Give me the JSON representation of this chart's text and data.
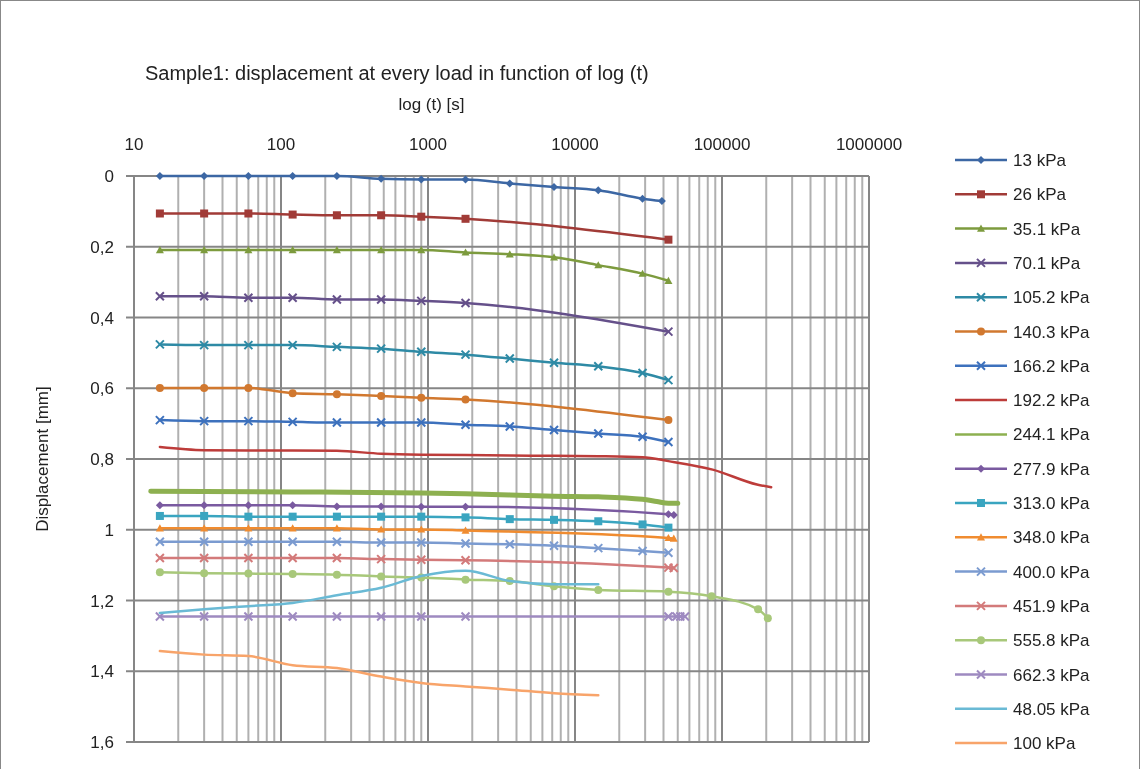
{
  "chart_data": {
    "type": "line",
    "title": "Sample1: displacement at every load in function of log (t)",
    "xlabel": "log (t) [s]",
    "ylabel": "Displacement [mm]",
    "log": "x",
    "grid": true,
    "legend": "right",
    "xlim": [
      10,
      1000000
    ],
    "ylim": [
      1.6,
      0
    ],
    "xticks": [
      10,
      {
        "value": 20,
        "label": null
      },
      {
        "value": 30,
        "label": null
      },
      {
        "value": 40,
        "label": null
      },
      {
        "value": 50,
        "label": null
      },
      {
        "value": 60,
        "label": null
      },
      {
        "value": 70,
        "label": null
      },
      {
        "value": 80,
        "label": null
      },
      {
        "value": 90,
        "label": null
      },
      100,
      {
        "value": 200,
        "label": null
      },
      {
        "value": 300,
        "label": null
      },
      {
        "value": 400,
        "label": null
      },
      {
        "value": 500,
        "label": null
      },
      {
        "value": 600,
        "label": null
      },
      {
        "value": 700,
        "label": null
      },
      {
        "value": 800,
        "label": null
      },
      {
        "value": 900,
        "label": null
      },
      1000,
      {
        "value": 2000,
        "label": null
      },
      {
        "value": 3000,
        "label": null
      },
      {
        "value": 4000,
        "label": null
      },
      {
        "value": 5000,
        "label": null
      },
      {
        "value": 6000,
        "label": null
      },
      {
        "value": 7000,
        "label": null
      },
      {
        "value": 8000,
        "label": null
      },
      {
        "value": 9000,
        "label": null
      },
      10000,
      {
        "value": 20000,
        "label": null
      },
      {
        "value": 30000,
        "label": null
      },
      {
        "value": 40000,
        "label": null
      },
      {
        "value": 50000,
        "label": null
      },
      {
        "value": 60000,
        "label": null
      },
      {
        "value": 70000,
        "label": null
      },
      {
        "value": 80000,
        "label": null
      },
      {
        "value": 90000,
        "label": null
      },
      100000,
      {
        "value": 200000,
        "label": null
      },
      {
        "value": 300000,
        "label": null
      },
      {
        "value": 400000,
        "label": null
      },
      {
        "value": 500000,
        "label": null
      },
      {
        "value": 600000,
        "label": null
      },
      {
        "value": 700000,
        "label": null
      },
      {
        "value": 800000,
        "label": null
      },
      {
        "value": 900000,
        "label": null
      },
      1000000
    ],
    "yticks": [
      0,
      {
        "value": 0.2,
        "label": "0,2"
      },
      {
        "value": 0.4,
        "label": "0,4"
      },
      {
        "value": 0.6,
        "label": "0,6"
      },
      {
        "value": 0.8,
        "label": "0,8"
      },
      1,
      {
        "value": 1.2,
        "label": "1,2"
      },
      {
        "value": 1.4,
        "label": "1,4"
      },
      {
        "value": 1.6,
        "label": "1,6"
      }
    ],
    "series": [
      {
        "name": "13 kPa",
        "color": "#3c67a4",
        "marker": "diamond",
        "x": [
          15,
          30,
          60,
          120,
          240,
          480,
          900,
          1800,
          3600,
          7200,
          14400,
          28800,
          39000
        ],
        "values": [
          0,
          0,
          0,
          0,
          0,
          0.008,
          0.01,
          0.01,
          0.021,
          0.031,
          0.04,
          0.064,
          0.071
        ]
      },
      {
        "name": "26 kPa",
        "color": "#a13b37",
        "marker": "square",
        "x": [
          15,
          30,
          60,
          120,
          240,
          480,
          900,
          1800,
          43200
        ],
        "values": [
          0.106,
          0.106,
          0.106,
          0.109,
          0.111,
          0.111,
          0.115,
          0.121,
          0.18
        ]
      },
      {
        "name": "35.1 kPa",
        "color": "#7d9b3e",
        "marker": "triangle",
        "x": [
          15,
          30,
          60,
          120,
          240,
          480,
          900,
          1800,
          3600,
          7200,
          14400,
          28800,
          43200
        ],
        "values": [
          0.209,
          0.209,
          0.209,
          0.209,
          0.209,
          0.209,
          0.209,
          0.216,
          0.221,
          0.23,
          0.252,
          0.276,
          0.296
        ]
      },
      {
        "name": "70.1 kPa",
        "color": "#65508a",
        "marker": "cross",
        "x": [
          15,
          30,
          60,
          120,
          240,
          480,
          900,
          1800,
          43200
        ],
        "values": [
          0.34,
          0.34,
          0.344,
          0.344,
          0.349,
          0.349,
          0.353,
          0.359,
          0.44
        ]
      },
      {
        "name": "105.2 kPa",
        "color": "#2e8aa5",
        "marker": "cross",
        "x": [
          15,
          30,
          60,
          120,
          240,
          480,
          900,
          1800,
          3600,
          7200,
          14400,
          28800,
          43200
        ],
        "values": [
          0.476,
          0.478,
          0.478,
          0.478,
          0.483,
          0.488,
          0.497,
          0.505,
          0.516,
          0.528,
          0.538,
          0.557,
          0.577
        ]
      },
      {
        "name": "140.3 kPa",
        "color": "#d1782f",
        "marker": "circle",
        "x": [
          15,
          30,
          60,
          120,
          240,
          480,
          900,
          1800,
          43200
        ],
        "values": [
          0.599,
          0.599,
          0.599,
          0.614,
          0.617,
          0.622,
          0.627,
          0.632,
          0.69
        ]
      },
      {
        "name": "166.2 kPa",
        "color": "#3d71bd",
        "marker": "cross",
        "x": [
          15,
          30,
          60,
          120,
          240,
          480,
          900,
          1800,
          3600,
          7200,
          14400,
          28800,
          43200
        ],
        "values": [
          0.69,
          0.693,
          0.693,
          0.695,
          0.697,
          0.697,
          0.697,
          0.703,
          0.708,
          0.718,
          0.728,
          0.737,
          0.752
        ]
      },
      {
        "name": "192.2 kPa",
        "color": "#bd3c3a",
        "marker": "none",
        "x": [
          15,
          30,
          60,
          120,
          240,
          480,
          900,
          1800,
          3600,
          7200,
          14400,
          28800,
          43200,
          86400,
          172800,
          216000
        ],
        "values": [
          0.766,
          0.775,
          0.776,
          0.776,
          0.777,
          0.785,
          0.788,
          0.789,
          0.79,
          0.791,
          0.792,
          0.795,
          0.806,
          0.83,
          0.872,
          0.88
        ]
      },
      {
        "name": "244.1 kPa",
        "color": "#8db050",
        "marker": "none",
        "x": [
          13,
          120,
          900,
          1800,
          7200,
          14400,
          28800,
          36000,
          43200,
          50000
        ],
        "values": [
          0.891,
          0.893,
          0.896,
          0.898,
          0.905,
          0.907,
          0.914,
          0.92,
          0.925,
          0.925
        ]
      },
      {
        "name": "277.9 kPa",
        "color": "#7a5aa0",
        "marker": "diamond",
        "x": [
          15,
          30,
          60,
          120,
          240,
          480,
          900,
          1800,
          43200,
          47000
        ],
        "values": [
          0.931,
          0.931,
          0.931,
          0.931,
          0.934,
          0.934,
          0.935,
          0.935,
          0.956,
          0.958
        ]
      },
      {
        "name": "313.0 kPa",
        "color": "#3aa5c0",
        "marker": "square",
        "x": [
          15,
          30,
          60,
          120,
          240,
          480,
          900,
          1800,
          3600,
          7200,
          14400,
          28800,
          43200
        ],
        "values": [
          0.961,
          0.961,
          0.963,
          0.963,
          0.963,
          0.963,
          0.963,
          0.965,
          0.97,
          0.972,
          0.976,
          0.985,
          0.994
        ]
      },
      {
        "name": "348.0 kPa",
        "color": "#f08c30",
        "marker": "triangle",
        "x": [
          15,
          30,
          60,
          120,
          240,
          480,
          900,
          1800,
          43200,
          47000
        ],
        "values": [
          0.996,
          0.996,
          0.996,
          0.996,
          0.996,
          0.999,
          0.999,
          1.002,
          1.023,
          1.025
        ]
      },
      {
        "name": "400.0 kPa",
        "color": "#7b9bd0",
        "marker": "cross",
        "x": [
          15,
          30,
          60,
          120,
          240,
          480,
          900,
          1800,
          3600,
          7200,
          14400,
          28800,
          43200
        ],
        "values": [
          1.034,
          1.034,
          1.034,
          1.034,
          1.034,
          1.036,
          1.036,
          1.039,
          1.041,
          1.045,
          1.052,
          1.06,
          1.065
        ]
      },
      {
        "name": "451.9 kPa",
        "color": "#d37a7a",
        "marker": "cross",
        "x": [
          15,
          30,
          60,
          120,
          240,
          480,
          900,
          1800,
          43200,
          47000
        ],
        "values": [
          1.08,
          1.08,
          1.08,
          1.08,
          1.08,
          1.083,
          1.085,
          1.086,
          1.107,
          1.108
        ]
      },
      {
        "name": "555.8 kPa",
        "color": "#a8c87a",
        "marker": "circle",
        "x": [
          15,
          30,
          60,
          120,
          240,
          480,
          900,
          1800,
          3600,
          7200,
          14400,
          43200,
          85000,
          176000,
          205000
        ],
        "values": [
          1.12,
          1.123,
          1.124,
          1.125,
          1.127,
          1.132,
          1.135,
          1.141,
          1.145,
          1.16,
          1.17,
          1.175,
          1.188,
          1.225,
          1.25
        ]
      },
      {
        "name": "662.3 kPa",
        "color": "#9e8ac0",
        "marker": "cross",
        "x": [
          15,
          30,
          60,
          120,
          240,
          480,
          900,
          1800,
          43200,
          49000,
          52000,
          56000
        ],
        "values": [
          1.245,
          1.245,
          1.245,
          1.245,
          1.245,
          1.245,
          1.245,
          1.245,
          1.245,
          1.245,
          1.245,
          1.245
        ]
      },
      {
        "name": "48.05 kPa",
        "color": "#6abad5",
        "marker": "none",
        "x": [
          15,
          30,
          60,
          120,
          240,
          480,
          900,
          1800,
          3600,
          7200,
          14400
        ],
        "values": [
          1.235,
          1.225,
          1.216,
          1.207,
          1.185,
          1.164,
          1.131,
          1.116,
          1.145,
          1.154,
          1.154
        ]
      },
      {
        "name": "100 kPa",
        "color": "#f8a46a",
        "marker": "none",
        "x": [
          15,
          30,
          60,
          120,
          240,
          480,
          900,
          1800,
          3600,
          7200,
          14400
        ],
        "values": [
          1.343,
          1.353,
          1.357,
          1.383,
          1.391,
          1.415,
          1.433,
          1.443,
          1.452,
          1.462,
          1.468
        ]
      }
    ]
  }
}
